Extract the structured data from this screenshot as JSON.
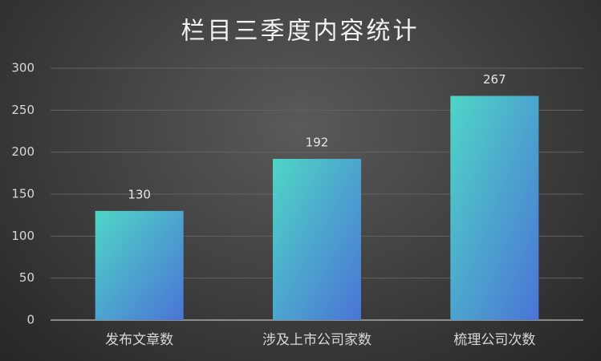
{
  "chart_data": {
    "type": "bar",
    "title": "栏目三季度内容统计",
    "categories": [
      "发布文章数",
      "涉及上市公司家数",
      "梳理公司次数"
    ],
    "values": [
      130,
      192,
      267
    ],
    "gradient": [
      "#4fd6c6",
      "#4a74d6"
    ],
    "ylim": [
      0,
      300
    ],
    "yticks": [
      0,
      50,
      100,
      150,
      200,
      250,
      300
    ],
    "grid": true,
    "data_labels": true
  }
}
